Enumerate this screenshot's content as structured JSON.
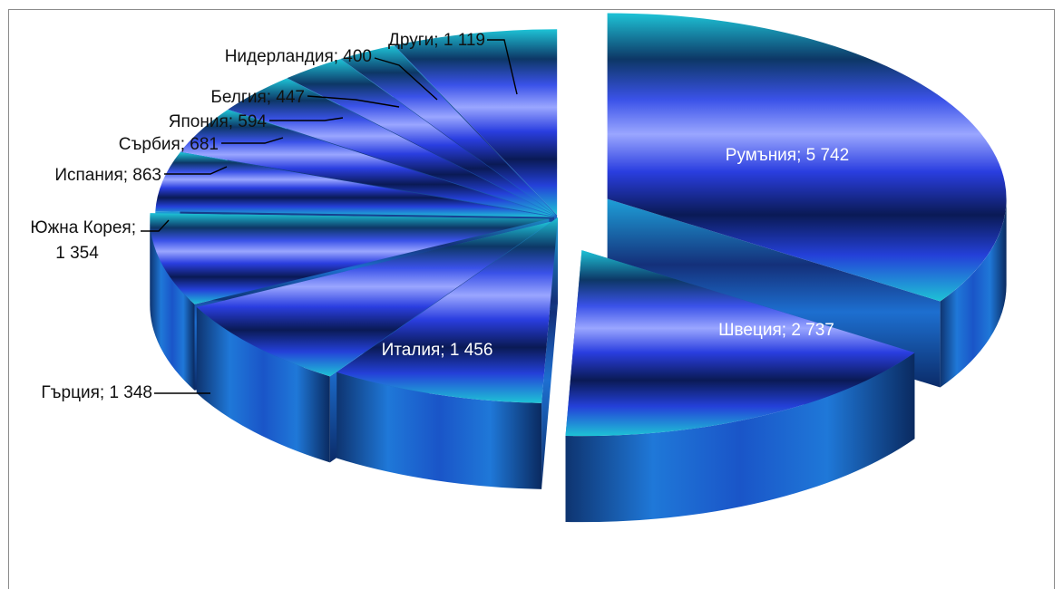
{
  "chart_data": {
    "type": "pie",
    "style": "3d-exploded",
    "title": "",
    "categories": [
      "Румъния",
      "Швеция",
      "Италия",
      "Гърция",
      "Южна Корея",
      "Испания",
      "Сърбия",
      "Япония",
      "Белгия",
      "Нидерландия",
      "Други"
    ],
    "values": [
      5742,
      2737,
      1456,
      1348,
      1354,
      863,
      681,
      594,
      447,
      400,
      1119
    ],
    "labels": [
      "Румъния; 5 742",
      "Швеция; 2 737",
      "Италия; 1 456",
      "Гърция; 1 348",
      "Южна Корея;",
      "Испания; 863",
      "Сърбия; 681",
      "Япония; 594",
      "Белгия; 447",
      "Нидерландия; 400",
      "Други; 1 119"
    ],
    "korea_value_line": "1 354",
    "legend": "none",
    "colors": {
      "top_light": "#9aa6ff",
      "top_teal": "#1ec3d6",
      "mid_blue": "#2b3fe0",
      "dark_navy": "#0a1a4a",
      "side_blue": "#1f78d8"
    }
  }
}
